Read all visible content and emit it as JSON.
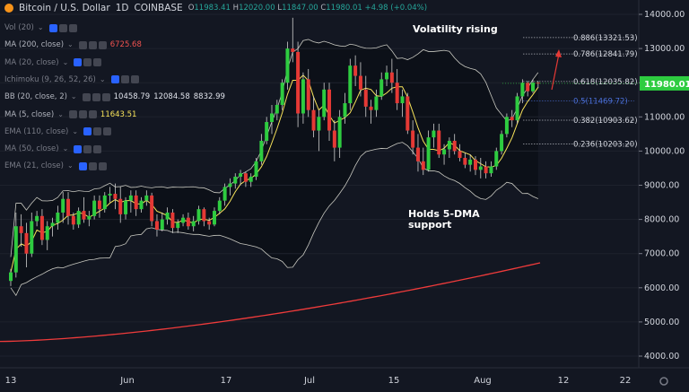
{
  "header": {
    "symbol": "Bitcoin / U.S. Dollar",
    "interval": "1D",
    "exchange": "COINBASE",
    "ohlc": {
      "o": "11983.41",
      "h": "12020.00",
      "l": "11847.00",
      "c": "11980.01",
      "chg": "+4.98 (+0.04%)"
    }
  },
  "indicators": [
    {
      "name": "Vol (20)",
      "values": [],
      "dim": true
    },
    {
      "name": "MA (200, close)",
      "values": [
        {
          "v": "6725.68",
          "color": "#f05350"
        }
      ],
      "dim": false
    },
    {
      "name": "MA (20, close)",
      "values": [],
      "dim": true
    },
    {
      "name": "Ichimoku (9, 26, 52, 26)",
      "values": [],
      "dim": true
    },
    {
      "name": "BB (20, close, 2)",
      "values": [
        {
          "v": "10458.79",
          "color": "#e0e3eb"
        },
        {
          "v": "12084.58",
          "color": "#e0e3eb"
        },
        {
          "v": "8832.99",
          "color": "#e0e3eb"
        }
      ],
      "dim": false
    },
    {
      "name": "MA (5, close)",
      "values": [
        {
          "v": "11643.51",
          "color": "#f7e35a"
        }
      ],
      "dim": false
    },
    {
      "name": "EMA (110, close)",
      "values": [],
      "dim": true
    },
    {
      "name": "MA (50, close)",
      "values": [],
      "dim": true
    },
    {
      "name": "EMA (21, close)",
      "values": [],
      "dim": true
    }
  ],
  "annotations": {
    "volatility": "Volatility rising",
    "support_line1": "Holds 5-DMA",
    "support_line2": "support"
  },
  "chart_data": {
    "type": "candlestick",
    "ylim": [
      3700,
      14600
    ],
    "y_ticks": [
      "14000.00",
      "13000.00",
      "12000.00",
      "11000.00",
      "10000.00",
      "9000.00",
      "8000.00",
      "7000.00",
      "6000.00",
      "5000.00",
      "4000.00"
    ],
    "x_ticks": [
      "13",
      "Jun",
      "17",
      "Jul",
      "15",
      "Aug",
      "12",
      "22"
    ],
    "last_price": "11980.01",
    "fib_levels": [
      {
        "label": "0.886(13321.53)",
        "value": 13321.53,
        "color": "#d1d4dc"
      },
      {
        "label": "0.786(12841.79)",
        "value": 12841.79,
        "color": "#d1d4dc"
      },
      {
        "label": "0.618(12035.82)",
        "value": 12035.82,
        "color": "#d1d4dc"
      },
      {
        "label": "0.5(11469.72)",
        "value": 11469.72,
        "color": "#4a6fd8"
      },
      {
        "label": "0.382(10903.62)",
        "value": 10903.62,
        "color": "#d1d4dc"
      },
      {
        "label": "0.236(10203.20)",
        "value": 10203.2,
        "color": "#d1d4dc"
      }
    ],
    "candles": [
      [
        6200,
        6550,
        6050,
        6450
      ],
      [
        6450,
        8200,
        6300,
        7800
      ],
      [
        7800,
        8150,
        7200,
        7600
      ],
      [
        7600,
        7900,
        6600,
        7000
      ],
      [
        7000,
        8200,
        6900,
        7950
      ],
      [
        7950,
        8250,
        7800,
        8100
      ],
      [
        8100,
        8300,
        7250,
        7400
      ],
      [
        7400,
        7950,
        7100,
        7800
      ],
      [
        7800,
        8050,
        7500,
        7900
      ],
      [
        7900,
        8400,
        7700,
        8200
      ],
      [
        8200,
        8800,
        7900,
        8600
      ],
      [
        8600,
        8800,
        7850,
        8100
      ],
      [
        8100,
        8200,
        7700,
        7850
      ],
      [
        7850,
        8350,
        7750,
        8250
      ],
      [
        8250,
        8650,
        7900,
        8000
      ],
      [
        8000,
        8250,
        7800,
        8100
      ],
      [
        8100,
        8700,
        8000,
        8550
      ],
      [
        8550,
        8700,
        8050,
        8300
      ],
      [
        8300,
        8800,
        8200,
        8700
      ],
      [
        8700,
        8950,
        8500,
        8750
      ],
      [
        8750,
        9050,
        8300,
        8600
      ],
      [
        8600,
        8950,
        7900,
        8150
      ],
      [
        8150,
        8650,
        8000,
        8550
      ],
      [
        8550,
        8850,
        8200,
        8700
      ],
      [
        8700,
        8850,
        8100,
        8300
      ],
      [
        8300,
        8650,
        8200,
        8550
      ],
      [
        8550,
        8850,
        8400,
        8700
      ],
      [
        8700,
        8780,
        7800,
        7950
      ],
      [
        7950,
        8150,
        7500,
        7700
      ],
      [
        7700,
        8200,
        7650,
        8000
      ],
      [
        8000,
        8350,
        7850,
        8200
      ],
      [
        8200,
        8300,
        7600,
        7750
      ],
      [
        7750,
        8000,
        7600,
        7900
      ],
      [
        7900,
        8150,
        7800,
        8050
      ],
      [
        8050,
        8200,
        7700,
        7800
      ],
      [
        7800,
        8100,
        7650,
        7950
      ],
      [
        7950,
        8400,
        7850,
        8300
      ],
      [
        8300,
        8350,
        7800,
        7950
      ],
      [
        7950,
        8050,
        7700,
        7850
      ],
      [
        7850,
        8350,
        7800,
        8250
      ],
      [
        8250,
        8650,
        8150,
        8550
      ],
      [
        8550,
        9050,
        8400,
        8950
      ],
      [
        8950,
        9200,
        8700,
        9050
      ],
      [
        9050,
        9350,
        8900,
        9250
      ],
      [
        9250,
        9450,
        9000,
        9350
      ],
      [
        9350,
        9400,
        8950,
        9100
      ],
      [
        9100,
        9350,
        8950,
        9250
      ],
      [
        9250,
        9800,
        9150,
        9700
      ],
      [
        9700,
        10500,
        9600,
        10300
      ],
      [
        10300,
        11000,
        10200,
        10850
      ],
      [
        10850,
        11350,
        10500,
        11100
      ],
      [
        11100,
        11500,
        10900,
        11350
      ],
      [
        11350,
        12100,
        11200,
        12000
      ],
      [
        12000,
        13200,
        11800,
        13000
      ],
      [
        13000,
        13900,
        12600,
        12900
      ],
      [
        12900,
        13200,
        10700,
        11100
      ],
      [
        11100,
        12300,
        10800,
        12100
      ],
      [
        12100,
        12400,
        11000,
        11200
      ],
      [
        11200,
        11600,
        10400,
        10600
      ],
      [
        10600,
        11200,
        10000,
        11000
      ],
      [
        11000,
        12000,
        10900,
        11800
      ],
      [
        11800,
        12000,
        10300,
        10600
      ],
      [
        10600,
        10900,
        9700,
        10100
      ],
      [
        10100,
        11200,
        9800,
        11000
      ],
      [
        11000,
        11700,
        10800,
        11400
      ],
      [
        11400,
        12700,
        11200,
        12500
      ],
      [
        12500,
        12800,
        11900,
        12200
      ],
      [
        12200,
        12600,
        11600,
        11800
      ],
      [
        11800,
        12200,
        11000,
        11300
      ],
      [
        11300,
        11500,
        10800,
        11200
      ],
      [
        11200,
        11800,
        11000,
        11600
      ],
      [
        11600,
        12300,
        11500,
        12100
      ],
      [
        12100,
        12500,
        11900,
        12300
      ],
      [
        12300,
        12700,
        11700,
        12000
      ],
      [
        12000,
        12400,
        11200,
        11400
      ],
      [
        11400,
        11800,
        11000,
        11600
      ],
      [
        11600,
        11700,
        10500,
        10600
      ],
      [
        10600,
        10900,
        9900,
        10100
      ],
      [
        10100,
        10500,
        9400,
        9700
      ],
      [
        9700,
        10100,
        9300,
        9450
      ],
      [
        9450,
        10600,
        9400,
        10400
      ],
      [
        10400,
        10800,
        10100,
        10600
      ],
      [
        10600,
        10800,
        9800,
        9900
      ],
      [
        9900,
        10200,
        9600,
        10050
      ],
      [
        10050,
        10400,
        9800,
        10300
      ],
      [
        10300,
        10500,
        9900,
        10000
      ],
      [
        10000,
        10200,
        9700,
        9800
      ],
      [
        9800,
        9950,
        9500,
        9600
      ],
      [
        9600,
        9900,
        9400,
        9750
      ],
      [
        9750,
        9850,
        9300,
        9450
      ],
      [
        9450,
        9800,
        9200,
        9550
      ],
      [
        9550,
        9700,
        9200,
        9350
      ],
      [
        9350,
        9700,
        9250,
        9550
      ],
      [
        9550,
        10100,
        9450,
        10000
      ],
      [
        10000,
        10600,
        9900,
        10500
      ],
      [
        10500,
        11100,
        10400,
        11000
      ],
      [
        11000,
        11200,
        10700,
        10900
      ],
      [
        10900,
        11700,
        10800,
        11600
      ],
      [
        11600,
        12100,
        11400,
        12000
      ],
      [
        12000,
        12050,
        11600,
        11750
      ],
      [
        11750,
        12100,
        11700,
        12000
      ],
      [
        12000,
        12050,
        11850,
        11980
      ]
    ]
  }
}
